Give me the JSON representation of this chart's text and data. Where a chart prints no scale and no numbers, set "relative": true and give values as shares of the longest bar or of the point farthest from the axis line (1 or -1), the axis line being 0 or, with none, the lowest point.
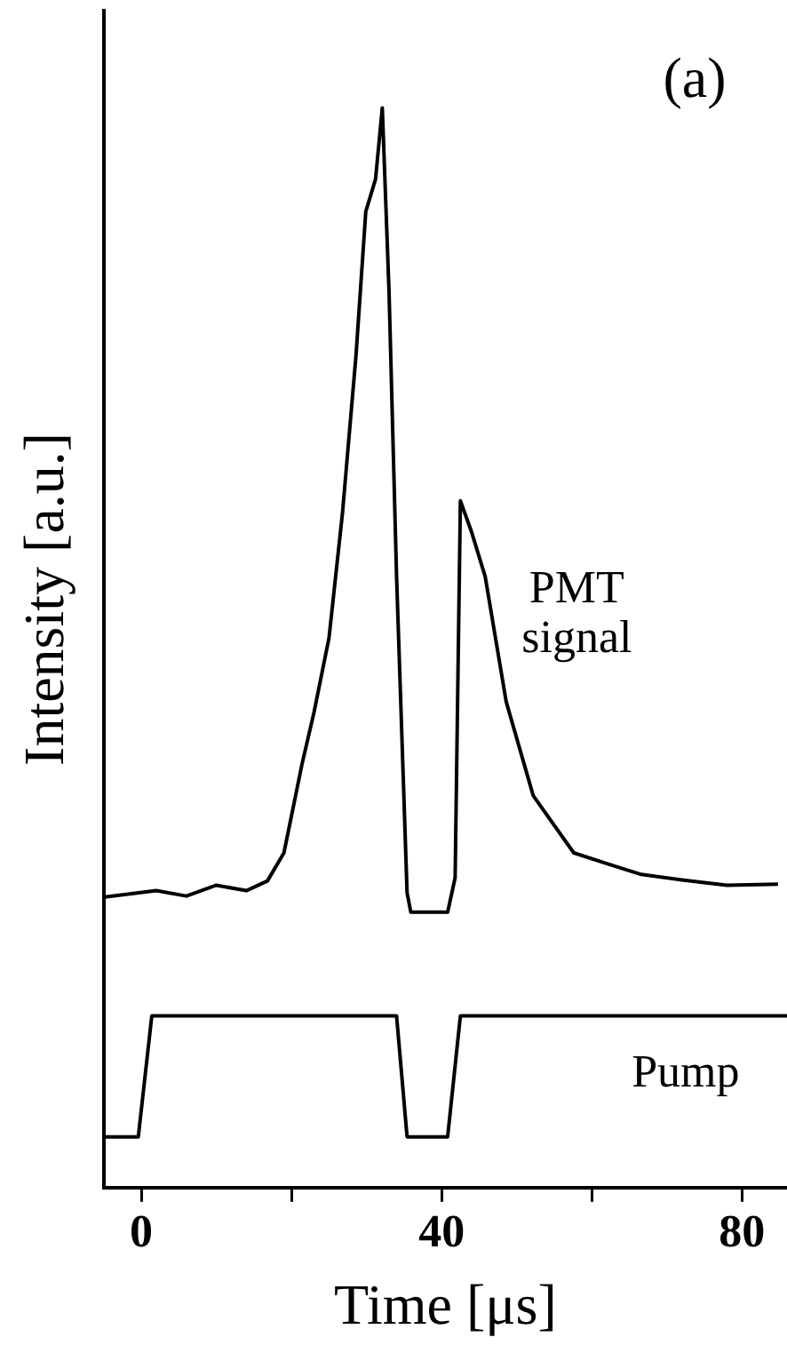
{
  "chart_data": {
    "type": "line",
    "relative": true,
    "xlabel": "Time [μs]",
    "ylabel": "Intensity [a.u.]",
    "annotations": [
      "(a)"
    ],
    "xlim": [
      -5,
      86
    ],
    "xticks": [
      0,
      {
        "value": 20,
        "label": null
      },
      40,
      {
        "value": 60,
        "label": null
      },
      80
    ],
    "grid": false,
    "legend": false,
    "marker": "none",
    "line_style": "solid",
    "series": [
      {
        "name": "PMT signal",
        "color": "#000000",
        "x": [
          -4.9,
          2,
          6,
          10,
          14,
          16.8,
          19,
          21.4,
          23,
          25,
          26.8,
          28.6,
          29.9,
          31.2,
          32.1,
          33.0,
          34.0,
          35.4,
          35.9,
          40.8,
          41.8,
          42.5,
          44.0,
          45.8,
          48.6,
          52.2,
          57.6,
          62,
          66.6,
          72,
          78,
          84.8
        ],
        "values": [
          0.269,
          0.275,
          0.27,
          0.28,
          0.275,
          0.284,
          0.31,
          0.392,
          0.44,
          0.509,
          0.625,
          0.771,
          0.904,
          0.934,
          1,
          0.829,
          0.566,
          0.273,
          0.255,
          0.255,
          0.287,
          0.636,
          0.607,
          0.566,
          0.45,
          0.363,
          0.31,
          0.3,
          0.29,
          0.285,
          0.28,
          0.281
        ]
      },
      {
        "name": "Pump",
        "color": "#000000",
        "x": [
          -5,
          -0.4,
          1.4,
          34,
          35.4,
          40.8,
          42.5,
          86
        ],
        "values": [
          0.047,
          0.047,
          0.159,
          0.159,
          0.047,
          0.047,
          0.159,
          0.159
        ]
      }
    ]
  }
}
